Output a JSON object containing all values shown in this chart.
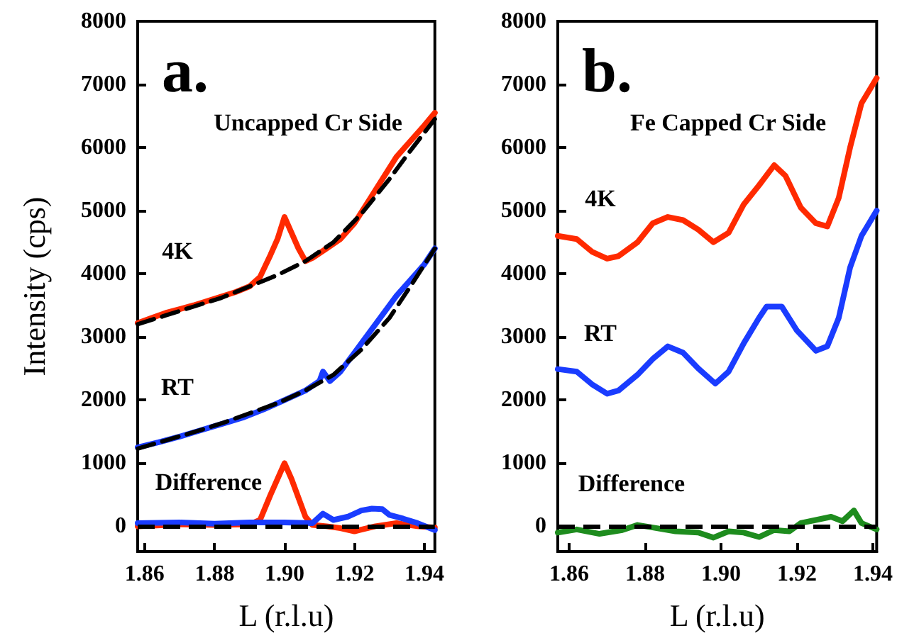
{
  "chart_data": [
    {
      "type": "line",
      "title": "a.",
      "subtitle": "Uncapped Cr Side",
      "xlabel": "L (r.l.u)",
      "ylabel": "Intensity (cps)",
      "xlim": [
        1.858,
        1.943
      ],
      "ylim": [
        -400,
        8000
      ],
      "xticks": [
        1.86,
        1.88,
        {
          "value": 1.9,
          "label": "1.90"
        },
        1.92,
        1.94
      ],
      "yticks": [
        0,
        1000,
        2000,
        3000,
        4000,
        5000,
        6000,
        7000,
        8000
      ],
      "grid": false,
      "marker": "none",
      "line_style": "solid",
      "series": [
        {
          "color": "#ff2a00",
          "x": [
            1.858,
            1.862,
            1.866,
            1.87,
            1.874,
            1.878,
            1.882,
            1.886,
            1.89,
            1.893,
            1.896,
            1.898,
            1.9,
            1.902,
            1.904,
            1.906,
            1.908,
            1.912,
            1.916,
            1.92,
            1.924,
            1.928,
            1.932,
            1.936,
            1.94,
            1.943
          ],
          "values": [
            3220,
            3300,
            3380,
            3440,
            3500,
            3570,
            3640,
            3710,
            3800,
            3950,
            4300,
            4550,
            4900,
            4650,
            4400,
            4200,
            4250,
            4400,
            4550,
            4800,
            5150,
            5500,
            5850,
            6100,
            6350,
            6550
          ]
        },
        {
          "color": "#000000",
          "line_style": "dashed",
          "x": [
            1.858,
            1.866,
            1.874,
            1.882,
            1.89,
            1.898,
            1.906,
            1.914,
            1.922,
            1.93,
            1.936,
            1.943
          ],
          "values": [
            3200,
            3340,
            3480,
            3620,
            3800,
            3980,
            4200,
            4500,
            4950,
            5500,
            5950,
            6450
          ]
        },
        {
          "color": "#1a3cff",
          "x": [
            1.858,
            1.864,
            1.87,
            1.876,
            1.882,
            1.888,
            1.894,
            1.9,
            1.906,
            1.91,
            1.911,
            1.913,
            1.916,
            1.92,
            1.924,
            1.928,
            1.932,
            1.936,
            1.94,
            1.943
          ],
          "values": [
            1250,
            1330,
            1420,
            1520,
            1620,
            1720,
            1850,
            2000,
            2150,
            2300,
            2450,
            2300,
            2450,
            2750,
            3050,
            3350,
            3650,
            3900,
            4150,
            4400
          ]
        },
        {
          "color": "#000000",
          "line_style": "dashed",
          "x": [
            1.858,
            1.866,
            1.874,
            1.882,
            1.89,
            1.898,
            1.906,
            1.914,
            1.922,
            1.93,
            1.936,
            1.943
          ],
          "values": [
            1230,
            1360,
            1490,
            1630,
            1790,
            1950,
            2150,
            2400,
            2800,
            3300,
            3800,
            4400
          ]
        },
        {
          "color": "#ff2a00",
          "x": [
            1.858,
            1.87,
            1.88,
            1.89,
            1.893,
            1.896,
            1.898,
            1.9,
            1.902,
            1.904,
            1.906,
            1.908,
            1.912,
            1.916,
            1.92,
            1.926,
            1.932,
            1.938,
            1.943
          ],
          "values": [
            0,
            30,
            20,
            30,
            100,
            500,
            750,
            1000,
            750,
            450,
            150,
            20,
            0,
            -30,
            -80,
            0,
            50,
            0,
            -20
          ]
        },
        {
          "color": "#1a3cff",
          "x": [
            1.858,
            1.87,
            1.88,
            1.89,
            1.9,
            1.908,
            1.91,
            1.911,
            1.914,
            1.918,
            1.922,
            1.925,
            1.928,
            1.93,
            1.934,
            1.938,
            1.943
          ],
          "values": [
            50,
            60,
            40,
            60,
            60,
            50,
            150,
            200,
            100,
            150,
            250,
            280,
            270,
            180,
            120,
            50,
            -60
          ]
        }
      ],
      "ref_lines": [
        {
          "axis": "y",
          "value": 0,
          "color": "#000000",
          "line_style": "dashed"
        }
      ],
      "annotations": [
        "4K",
        "RT",
        "Difference"
      ]
    },
    {
      "type": "line",
      "title": "b.",
      "subtitle": "Fe Capped Cr Side",
      "xlabel": "L (r.l.u)",
      "xlim": [
        1.857,
        1.941
      ],
      "ylim": [
        -400,
        8000
      ],
      "xticks": [
        1.86,
        1.88,
        {
          "value": 1.9,
          "label": "1.90"
        },
        1.92,
        1.94
      ],
      "yticks": [
        0,
        1000,
        2000,
        3000,
        4000,
        5000,
        6000,
        7000,
        8000
      ],
      "grid": false,
      "marker": "none",
      "line_style": "solid",
      "series": [
        {
          "color": "#ff2a00",
          "x": [
            1.857,
            1.862,
            1.866,
            1.87,
            1.873,
            1.878,
            1.882,
            1.886,
            1.89,
            1.894,
            1.898,
            1.902,
            1.906,
            1.91,
            1.914,
            1.917,
            1.921,
            1.925,
            1.928,
            1.931,
            1.934,
            1.937,
            1.941
          ],
          "values": [
            4600,
            4550,
            4350,
            4240,
            4280,
            4500,
            4800,
            4900,
            4850,
            4700,
            4500,
            4650,
            5100,
            5400,
            5720,
            5550,
            5050,
            4800,
            4750,
            5200,
            6000,
            6700,
            7100
          ]
        },
        {
          "color": "#1a3cff",
          "x": [
            1.857,
            1.862,
            1.866,
            1.87,
            1.873,
            1.878,
            1.882,
            1.886,
            1.89,
            1.894,
            1.8985,
            1.902,
            1.906,
            1.91,
            1.912,
            1.916,
            1.92,
            1.925,
            1.928,
            1.931,
            1.934,
            1.937,
            1.941
          ],
          "values": [
            2490,
            2450,
            2250,
            2100,
            2150,
            2400,
            2650,
            2850,
            2750,
            2500,
            2260,
            2450,
            2900,
            3300,
            3480,
            3480,
            3100,
            2780,
            2850,
            3300,
            4100,
            4600,
            5000
          ]
        },
        {
          "color": "#1e8c1e",
          "x": [
            1.857,
            1.862,
            1.868,
            1.874,
            1.878,
            1.882,
            1.888,
            1.894,
            1.898,
            1.902,
            1.906,
            1.91,
            1.914,
            1.918,
            1.921,
            1.925,
            1.929,
            1.932,
            1.935,
            1.937,
            1.941
          ],
          "values": [
            -100,
            -50,
            -120,
            -60,
            20,
            -20,
            -80,
            -100,
            -180,
            -80,
            -100,
            -170,
            -60,
            -80,
            50,
            100,
            150,
            80,
            250,
            50,
            -50
          ]
        }
      ],
      "ref_lines": [
        {
          "axis": "y",
          "value": 0,
          "color": "#000000",
          "line_style": "dashed"
        }
      ],
      "annotations": [
        "4K",
        "RT",
        "Difference"
      ]
    }
  ]
}
